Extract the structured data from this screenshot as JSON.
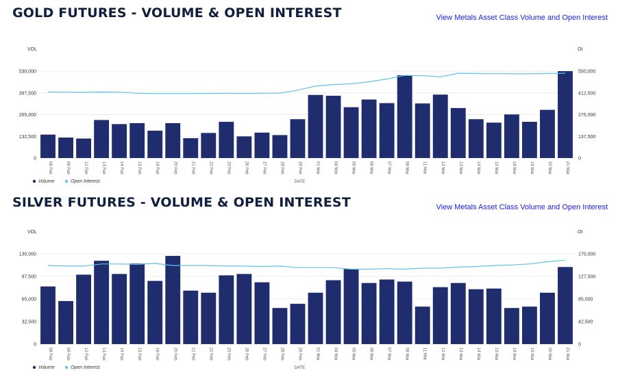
{
  "colors": {
    "volume": "#1f2d6e",
    "open_interest": "#5ec3ea",
    "grid": "#e6e6e6",
    "link": "#1a1ae6"
  },
  "panels": [
    {
      "title": "GOLD FUTURES - VOLUME & OPEN INTEREST",
      "link": "View Metals Asset Class Volume and Open Interest"
    },
    {
      "title": "SILVER FUTURES - VOLUME & OPEN INTEREST",
      "link": "View Metals Asset Class Volume and Open Interest"
    }
  ],
  "chart_data": [
    {
      "type": "bar",
      "title": "GOLD FUTURES - VOLUME & OPEN INTEREST",
      "categories": [
        "08 Feb",
        "09 Feb",
        "12 Feb",
        "13 Feb",
        "14 Feb",
        "15 Feb",
        "16 Feb",
        "20 Feb",
        "21 Feb",
        "22 Feb",
        "23 Feb",
        "26 Feb",
        "27 Feb",
        "28 Feb",
        "29 Feb",
        "01 Mar",
        "04 Mar",
        "05 Mar",
        "06 Mar",
        "07 Mar",
        "08 Mar",
        "11 Mar",
        "12 Mar",
        "13 Mar",
        "14 Mar",
        "15 Mar",
        "18 Mar",
        "19 Mar",
        "20 Mar",
        "21 Mar"
      ],
      "xlabel": "DATE",
      "ylabel": "VOL",
      "y2label": "OI",
      "ylim": [
        0,
        530000
      ],
      "y2lim": [
        0,
        550000
      ],
      "yticks": [
        "0",
        "132,500",
        "265,000",
        "397,500",
        "530,000"
      ],
      "y2ticks": [
        "0",
        "137,500",
        "275,000",
        "412,500",
        "550,000"
      ],
      "series": [
        {
          "name": "Volume",
          "kind": "bar",
          "axis": "left",
          "values": [
            143000,
            125000,
            119000,
            232000,
            207000,
            213000,
            167000,
            213000,
            121000,
            153000,
            221000,
            132000,
            155000,
            140000,
            237000,
            385000,
            380000,
            310000,
            357000,
            335000,
            505000,
            333000,
            387000,
            305000,
            237000,
            216000,
            266000,
            221000,
            294000,
            530000
          ]
        },
        {
          "name": "Open Interest",
          "kind": "line",
          "axis": "right",
          "values": [
            418000,
            417000,
            416000,
            418000,
            417000,
            410000,
            408000,
            408000,
            408000,
            409000,
            410000,
            409000,
            410000,
            411000,
            430000,
            455000,
            465000,
            470000,
            483000,
            500000,
            523000,
            521000,
            514000,
            537000,
            535000,
            534000,
            533000,
            533000,
            535000,
            537000
          ]
        }
      ],
      "legend_position": "bottom-left",
      "grid": true
    },
    {
      "type": "bar",
      "title": "SILVER FUTURES - VOLUME & OPEN INTEREST",
      "categories": [
        "08 Feb",
        "09 Feb",
        "12 Feb",
        "13 Feb",
        "14 Feb",
        "15 Feb",
        "16 Feb",
        "20 Feb",
        "21 Feb",
        "22 Feb",
        "23 Feb",
        "26 Feb",
        "27 Feb",
        "28 Feb",
        "29 Feb",
        "01 Mar",
        "04 Mar",
        "05 Mar",
        "06 Mar",
        "07 Mar",
        "08 Mar",
        "11 Mar",
        "12 Mar",
        "13 Mar",
        "14 Mar",
        "15 Mar",
        "18 Mar",
        "19 Mar",
        "20 Mar",
        "21 Mar"
      ],
      "xlabel": "DATE",
      "ylabel": "VOL",
      "y2label": "OI",
      "ylim": [
        0,
        130000
      ],
      "y2lim": [
        0,
        170000
      ],
      "yticks": [
        "0",
        "32,500",
        "65,000",
        "97,500",
        "130,000"
      ],
      "y2ticks": [
        "0",
        "42,500",
        "85,000",
        "127,500",
        "170,000"
      ],
      "series": [
        {
          "name": "Volume",
          "kind": "bar",
          "axis": "left",
          "values": [
            83000,
            62000,
            100000,
            120000,
            101000,
            116000,
            91000,
            127000,
            77000,
            74000,
            99000,
            101000,
            89000,
            52000,
            58000,
            74000,
            92000,
            108000,
            88000,
            93000,
            90000,
            54000,
            82000,
            88000,
            79000,
            80000,
            52000,
            54000,
            74000,
            111000
          ]
        },
        {
          "name": "Open Interest",
          "kind": "line",
          "axis": "right",
          "values": [
            148000,
            147000,
            147000,
            151000,
            151000,
            150000,
            152000,
            148000,
            148000,
            148000,
            147000,
            147000,
            146000,
            147000,
            144000,
            144000,
            144000,
            141000,
            141000,
            142000,
            141000,
            143000,
            143000,
            145000,
            146000,
            148000,
            149000,
            151000,
            155000,
            158000
          ]
        }
      ],
      "legend_position": "bottom-left",
      "grid": true
    }
  ]
}
